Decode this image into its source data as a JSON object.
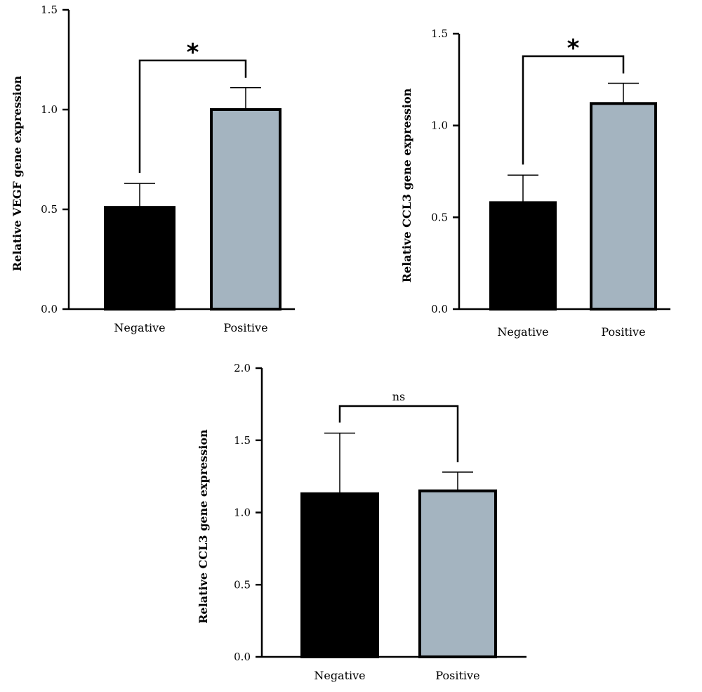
{
  "chart_data": [
    {
      "type": "bar",
      "ylabel": "Relative VEGF gene expression",
      "categories": [
        "Negative",
        "Positive"
      ],
      "values": [
        0.51,
        1.0
      ],
      "errors": [
        0.12,
        0.11
      ],
      "ylim": [
        0,
        1.5
      ],
      "yticks": [
        "0.0",
        "0.5",
        "1.0",
        "1.5"
      ],
      "bar_colors": [
        "#000000",
        "#a4b4c0"
      ],
      "significance": "*",
      "grid": false
    },
    {
      "type": "bar",
      "ylabel": "Relative CCL3 gene expression",
      "categories": [
        "Negative",
        "Positive"
      ],
      "values": [
        0.58,
        1.12
      ],
      "errors": [
        0.15,
        0.11
      ],
      "ylim": [
        0,
        1.5
      ],
      "yticks": [
        "0.0",
        "0.5",
        "1.0",
        "1.5"
      ],
      "bar_colors": [
        "#000000",
        "#a4b4c0"
      ],
      "significance": "*",
      "grid": false
    },
    {
      "type": "bar",
      "ylabel": "Relative CCL3 gene expression",
      "categories": [
        "Negative",
        "Positive"
      ],
      "values": [
        1.13,
        1.15
      ],
      "errors": [
        0.42,
        0.13
      ],
      "ylim": [
        0,
        2.0
      ],
      "yticks": [
        "0.0",
        "0.5",
        "1.0",
        "1.5",
        "2.0"
      ],
      "bar_colors": [
        "#000000",
        "#a4b4c0"
      ],
      "significance": "ns",
      "grid": false
    }
  ]
}
